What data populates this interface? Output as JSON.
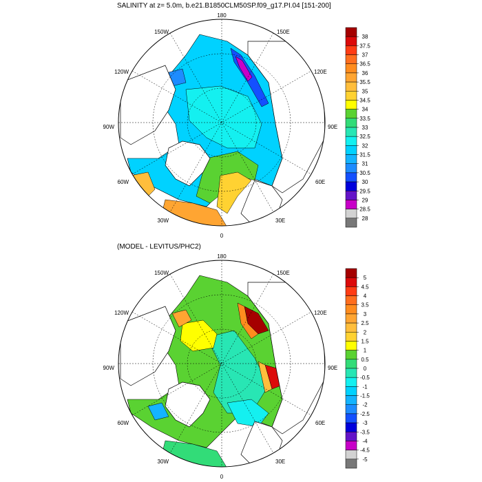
{
  "panels": [
    {
      "title": "SALINITY at z=   5.0m, b.e21.B1850CLM50SP.f09_g17.PI.04 [151-200]",
      "map_labels": [
        "180",
        "150E",
        "120E",
        "90E",
        "60E",
        "30E",
        "0",
        "30W",
        "60W",
        "90W",
        "120W",
        "150W"
      ],
      "colorbar": {
        "ticks": [
          "38",
          "37.5",
          "37",
          "36.5",
          "36",
          "35.5",
          "35",
          "34.5",
          "34",
          "33.5",
          "33",
          "32.5",
          "32",
          "31.5",
          "31",
          "30.5",
          "30",
          "29.5",
          "29",
          "28.5",
          "28"
        ],
        "colors": [
          "#a50000",
          "#dc0a0a",
          "#ff3c14",
          "#ff6e1e",
          "#ff8c1e",
          "#ffa532",
          "#ffbe3c",
          "#ffd232",
          "#ffff00",
          "#5ad232",
          "#32dc78",
          "#28e6b4",
          "#14f0f0",
          "#00d2ff",
          "#14b4ff",
          "#1e8cff",
          "#1450ff",
          "#0000dc",
          "#6414c8",
          "#c800c8",
          "#d2d2d2",
          "#787878"
        ]
      }
    },
    {
      "title": "(MODEL - LEVITUS/PHC2)",
      "map_labels": [
        "180",
        "150E",
        "120E",
        "90E",
        "60E",
        "30E",
        "0",
        "30W",
        "60W",
        "90W",
        "120W",
        "150W"
      ],
      "colorbar": {
        "ticks": [
          "5",
          "4.5",
          "4",
          "3.5",
          "3",
          "2.5",
          "2",
          "1.5",
          "1",
          "0.5",
          "0",
          "-0.5",
          "-1",
          "-1.5",
          "-2",
          "-2.5",
          "-3",
          "-3.5",
          "-4",
          "-4.5",
          "-5"
        ],
        "colors": [
          "#a50000",
          "#dc0a0a",
          "#ff3c14",
          "#ff6e1e",
          "#ff8c1e",
          "#ffa532",
          "#ffbe3c",
          "#ffd232",
          "#ffff00",
          "#5ad232",
          "#32dc78",
          "#28e6b4",
          "#14f0f0",
          "#00d2ff",
          "#14b4ff",
          "#1e8cff",
          "#1450ff",
          "#0000dc",
          "#6414c8",
          "#c800c8",
          "#d2d2d2",
          "#787878"
        ]
      }
    }
  ]
}
